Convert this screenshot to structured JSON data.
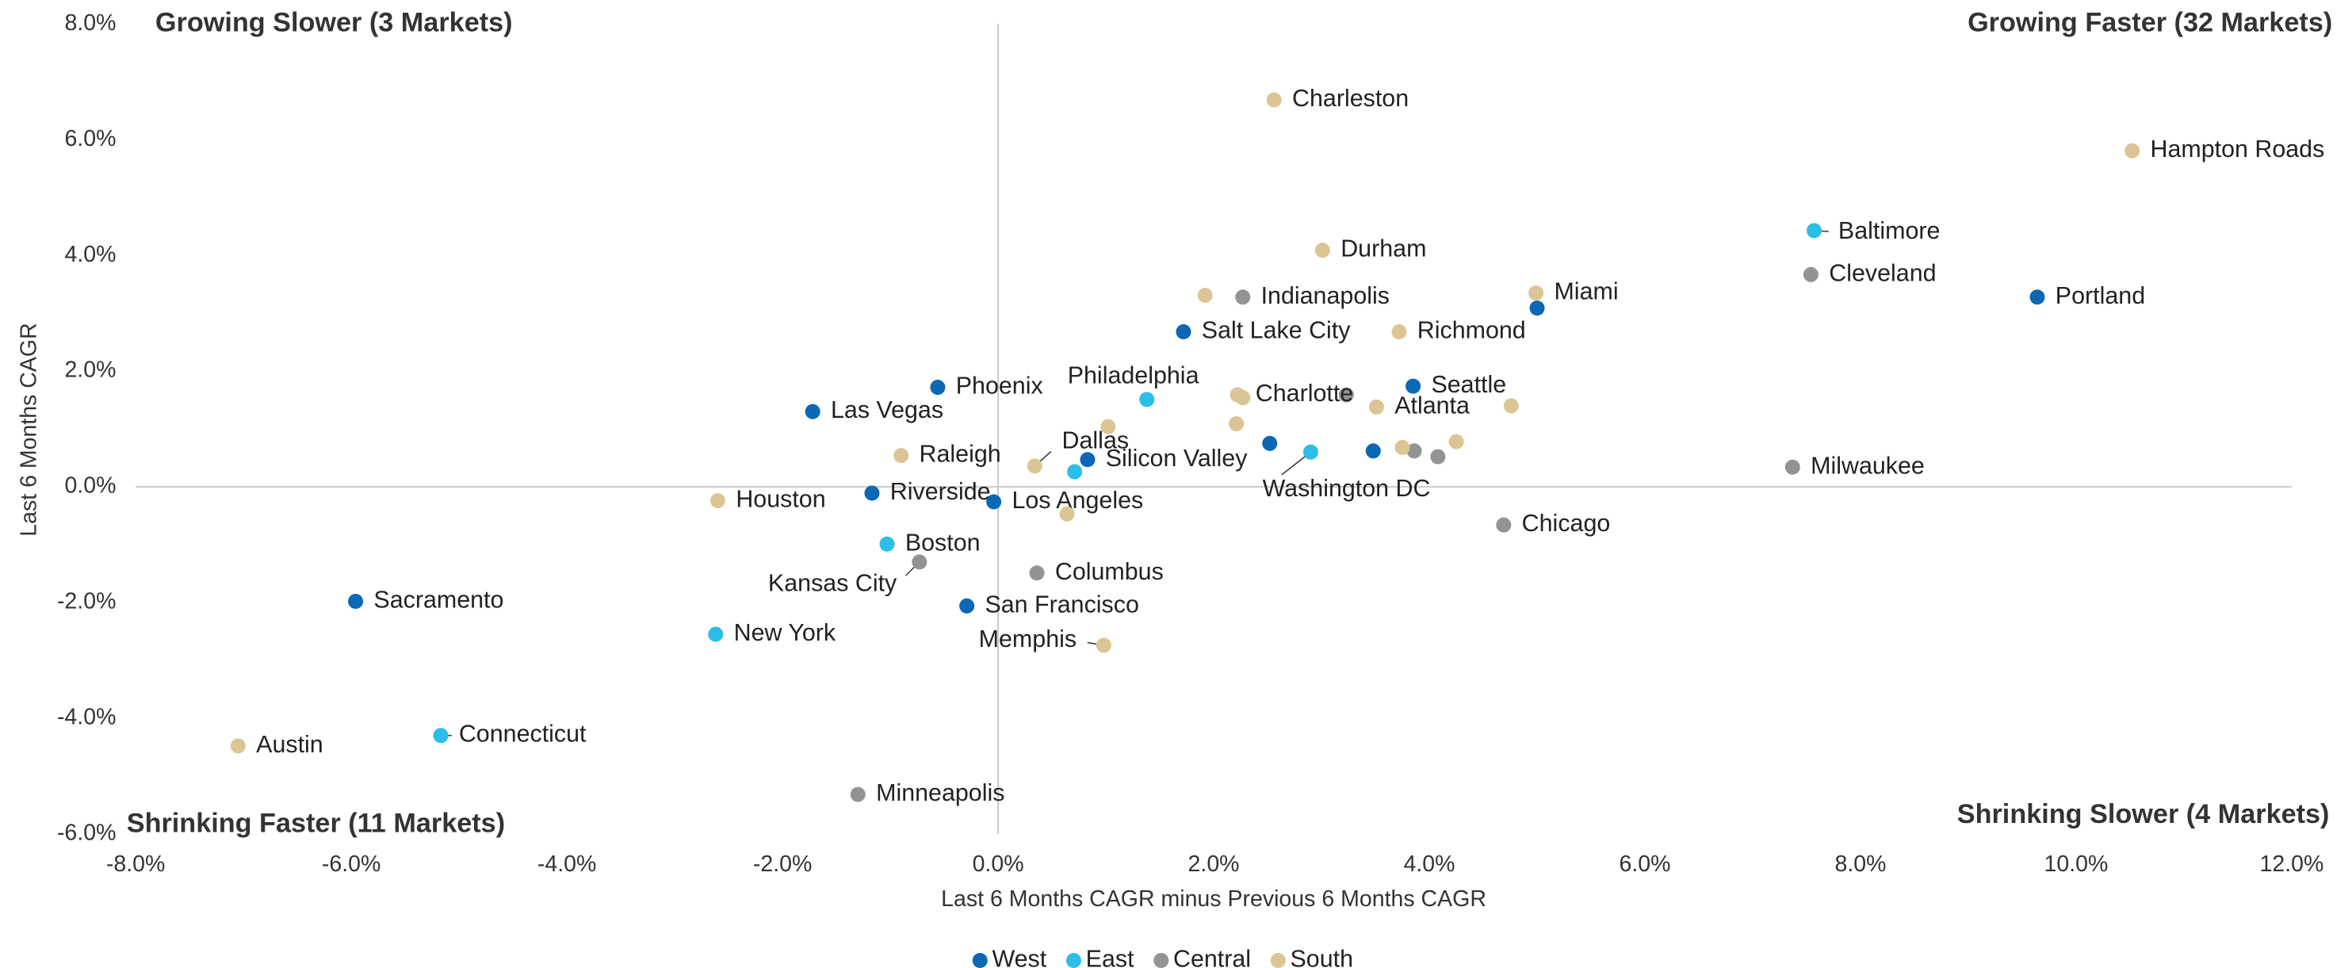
{
  "chart_data": {
    "type": "scatter",
    "xlabel": "Last 6 Months CAGR minus Previous 6 Months CAGR",
    "ylabel": "Last 6 Months CAGR",
    "annotations": [
      "Growing Slower (3 Markets)",
      "Growing Faster (32 Markets)",
      "Shrinking Faster (11 Markets)",
      "Shrinking Slower (4 Markets)"
    ],
    "xlim": [
      -8,
      12
    ],
    "ylim": [
      -6,
      8
    ],
    "xticks": [
      {
        "value": -8,
        "label": "-8.0%"
      },
      {
        "value": -6,
        "label": "-6.0%"
      },
      {
        "value": -4,
        "label": "-4.0%"
      },
      {
        "value": -2,
        "label": "-2.0%"
      },
      {
        "value": 0,
        "label": "0.0%"
      },
      {
        "value": 2,
        "label": "2.0%"
      },
      {
        "value": 4,
        "label": "4.0%"
      },
      {
        "value": 6,
        "label": "6.0%"
      },
      {
        "value": 8,
        "label": "8.0%"
      },
      {
        "value": 10,
        "label": "10.0%"
      },
      {
        "value": 12,
        "label": "12.0%"
      }
    ],
    "yticks": [
      {
        "value": -6,
        "label": "-6.0%"
      },
      {
        "value": -4,
        "label": "-4.0%"
      },
      {
        "value": -2,
        "label": "-2.0%"
      },
      {
        "value": 0,
        "label": "0.0%"
      },
      {
        "value": 2,
        "label": "2.0%"
      },
      {
        "value": 4,
        "label": "4.0%"
      },
      {
        "value": 6,
        "label": "6.0%"
      },
      {
        "value": 8,
        "label": "8.0%"
      }
    ],
    "legend": "bottom",
    "series": [
      {
        "name": "West",
        "color": "#0a68b4",
        "x": [
          5.0,
          9.64,
          1.72,
          -0.56,
          3.85,
          -1.72,
          2.52,
          3.48,
          0.83,
          -1.17,
          -0.04,
          -5.96,
          -0.29
        ],
        "values": [
          3.09,
          3.28,
          2.68,
          1.72,
          1.74,
          1.3,
          0.75,
          0.62,
          0.47,
          -0.11,
          -0.26,
          -1.98,
          -2.06
        ],
        "labels": [
          null,
          "Portland",
          "Salt Lake City",
          "Phoenix",
          "Seattle",
          "Las Vegas",
          null,
          null,
          "Silicon Valley",
          "Riverside",
          "Los Angeles",
          "Sacramento",
          "San Francisco"
        ]
      },
      {
        "name": "East",
        "color": "#2cbde9",
        "x": [
          7.57,
          1.38,
          2.9,
          0.71,
          -1.03,
          -2.62,
          -5.17
        ],
        "values": [
          4.43,
          1.51,
          0.6,
          0.26,
          -0.99,
          -2.55,
          -4.3
        ],
        "labels": [
          "Baltimore",
          "Philadelphia",
          "Washington DC",
          null,
          "Boston",
          "New York",
          "Connecticut"
        ]
      },
      {
        "name": "Central",
        "color": "#939393",
        "x": [
          7.54,
          2.27,
          3.23,
          3.86,
          4.08,
          7.37,
          4.69,
          -0.73,
          0.36,
          -1.3
        ],
        "values": [
          3.67,
          3.28,
          1.59,
          0.62,
          0.52,
          0.34,
          -0.66,
          -1.3,
          -1.49,
          -5.32
        ],
        "labels": [
          "Cleveland",
          "Indianapolis",
          null,
          null,
          null,
          "Milwaukee",
          "Chicago",
          "Kansas City",
          "Columbus",
          "Minneapolis"
        ]
      },
      {
        "name": "South",
        "color": "#dcc594",
        "x": [
          2.56,
          10.52,
          3.01,
          4.99,
          1.92,
          3.72,
          2.22,
          2.27,
          3.51,
          4.76,
          1.02,
          2.21,
          4.25,
          3.75,
          -0.9,
          0.34,
          -2.6,
          0.64,
          0.98,
          -7.05
        ],
        "values": [
          6.69,
          5.81,
          4.09,
          3.35,
          3.31,
          2.68,
          1.59,
          1.54,
          1.38,
          1.4,
          1.04,
          1.09,
          0.78,
          0.68,
          0.54,
          0.36,
          -0.24,
          -0.47,
          -2.74,
          -4.48
        ],
        "labels": [
          "Charleston",
          "Hampton Roads",
          "Durham",
          "Miami",
          null,
          "Richmond",
          "Charlotte",
          null,
          "Atlanta",
          null,
          null,
          null,
          null,
          null,
          "Raleigh",
          "Dallas",
          "Houston",
          null,
          "Memphis",
          "Austin"
        ]
      }
    ]
  }
}
